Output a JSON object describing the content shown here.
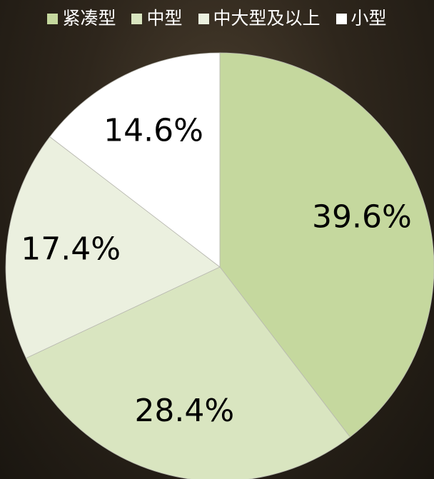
{
  "chart_data": {
    "type": "pie",
    "categories": [
      "紧凑型",
      "中型",
      "中大型及以上",
      "小型"
    ],
    "values": [
      39.6,
      28.4,
      17.4,
      14.6
    ],
    "value_labels": [
      "39.6%",
      "28.4%",
      "17.4%",
      "14.6%"
    ],
    "colors": [
      "#c5d89e",
      "#d9e5c0",
      "#ebf0df",
      "#ffffff"
    ],
    "legend": "top"
  }
}
